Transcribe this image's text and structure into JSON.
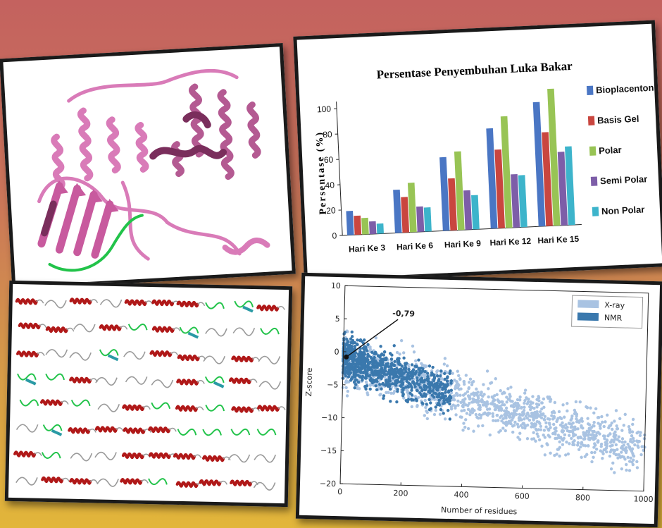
{
  "colors": {
    "ribbon_pink": "#d97bb8",
    "ribbon_dark": "#7a2e5c",
    "coil_green": "#22c34a",
    "helix_red": "#b01818",
    "xray": "#a9c3e2",
    "nmr": "#3a78ad"
  },
  "protein_panel": {
    "icon": "protein-ribbon-structure"
  },
  "fragments_panel": {
    "icon": "protein-fragment-grid"
  },
  "bar_chart": {
    "chart_data": {
      "type": "bar",
      "title": "Persentase Penyembuhan  Luka Bakar",
      "ylabel": "Persentase (%)",
      "xlabel": "",
      "ylim": [
        0,
        100
      ],
      "yticks": [
        "0",
        "20",
        "40",
        "60",
        "80",
        "100"
      ],
      "categories": [
        "Hari Ke 3",
        "Hari Ke 6",
        "Hari Ke 9",
        "Hari Ke 12",
        "Hari Ke 15"
      ],
      "series": [
        {
          "name": "Bioplacenton",
          "color": "#4a76c4",
          "values": [
            19,
            34,
            58,
            79,
            98
          ]
        },
        {
          "name": "Basis Gel",
          "color": "#c9463f",
          "values": [
            15,
            28,
            41,
            62,
            74
          ]
        },
        {
          "name": "Polar",
          "color": "#98c455",
          "values": [
            13,
            39,
            62,
            88,
            108
          ]
        },
        {
          "name": "Semi Polar",
          "color": "#7d5ea8",
          "values": [
            10,
            20,
            31,
            42,
            58
          ]
        },
        {
          "name": "Non Polar",
          "color": "#3db4cb",
          "values": [
            8,
            19,
            27,
            41,
            62
          ]
        }
      ],
      "legend_position": "right"
    }
  },
  "scatter_chart": {
    "chart_data": {
      "type": "scatter",
      "xlabel": "Number of residues",
      "ylabel": "Z-score",
      "xlim": [
        0,
        1000
      ],
      "ylim": [
        -20,
        10
      ],
      "xticks": [
        "0",
        "200",
        "400",
        "600",
        "800",
        "1000"
      ],
      "yticks": [
        "10",
        "5",
        "0",
        "−5",
        "−10",
        "−15",
        "−20"
      ],
      "series": [
        {
          "name": "X-ray",
          "color": "#a9c3e2"
        },
        {
          "name": "NMR",
          "color": "#3a78ad"
        }
      ],
      "annotation": {
        "text": "-0,79",
        "point": [
          10,
          -0.79
        ]
      },
      "legend_position": "top-right"
    }
  }
}
